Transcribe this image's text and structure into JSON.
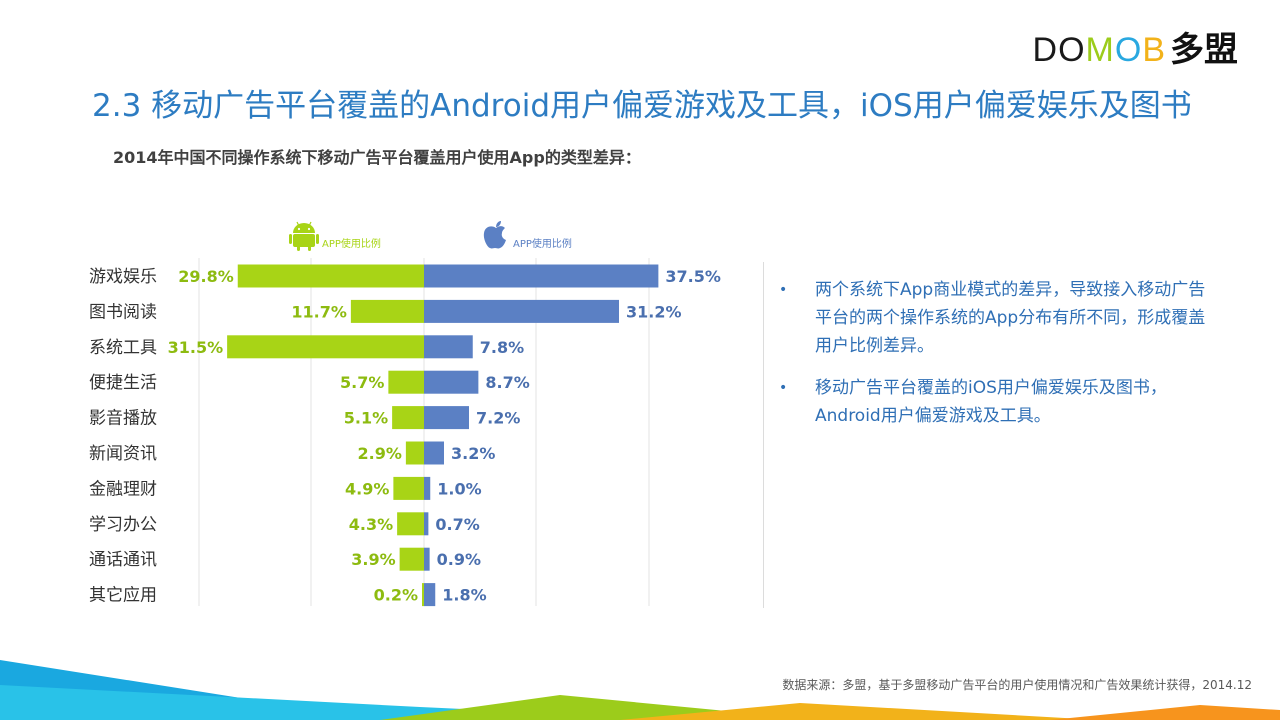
{
  "brand": {
    "logo_letters": [
      "D",
      "O",
      "M",
      "O",
      "B"
    ],
    "logo_colors": [
      "#1a1a1a",
      "#1a1a1a",
      "#9ccc1b",
      "#29a8e0",
      "#f2b21a"
    ],
    "logo_cn": "多盟"
  },
  "page": {
    "title": "2.3 移动广告平台覆盖的Android用户偏爱游戏及工具，iOS用户偏爱娱乐及图书",
    "subtitle": "2014年中国不同操作系统下移动广告平台覆盖用户使用App的类型差异："
  },
  "chart_data": {
    "type": "bar",
    "orientation": "horizontal-diverging",
    "categories": [
      "游戏娱乐",
      "图书阅读",
      "系统工具",
      "便捷生活",
      "影音播放",
      "新闻资讯",
      "金融理财",
      "学习办公",
      "通话通讯",
      "其它应用"
    ],
    "series": [
      {
        "name": "APP使用比例",
        "platform_icon": "android-icon",
        "color": "#a8d416",
        "label_color": "#8dbb10",
        "direction": "left",
        "values": [
          29.8,
          11.7,
          31.5,
          5.7,
          5.1,
          2.9,
          4.9,
          4.3,
          3.9,
          0.2
        ],
        "labels": [
          "29.8%",
          "11.7%",
          "31.5%",
          "5.7%",
          "5.1%",
          "2.9%",
          "4.9%",
          "4.3%",
          "3.9%",
          "0.2%"
        ]
      },
      {
        "name": "APP使用比例",
        "platform_icon": "apple-icon",
        "color": "#5b80c4",
        "label_color": "#4a6fae",
        "direction": "right",
        "values": [
          37.5,
          31.2,
          7.8,
          8.7,
          7.2,
          3.2,
          1.0,
          0.7,
          0.9,
          1.8
        ],
        "labels": [
          "37.5%",
          "31.2%",
          "7.8%",
          "8.7%",
          "7.2%",
          "3.2%",
          "1.0%",
          "0.7%",
          "0.9%",
          "1.8%"
        ]
      }
    ],
    "grid": true,
    "legend": "top"
  },
  "notes": {
    "bullets": [
      "两个系统下App商业模式的差异，导致接入移动广告平台的两个操作系统的App分布有所不同，形成覆盖用户比例差异。",
      "移动广告平台覆盖的iOS用户偏爱娱乐及图书，Android用户偏爱游戏及工具。"
    ],
    "bullet_glyph": "•"
  },
  "footer": {
    "source": "数据来源：多盟，基于多盟移动广告平台的用户使用情况和广告效果统计获得，2014.12"
  },
  "decoration_colors": [
    "#1aa8e0",
    "#29c2e8",
    "#9ccc1b",
    "#f2b21a",
    "#f7941d"
  ]
}
